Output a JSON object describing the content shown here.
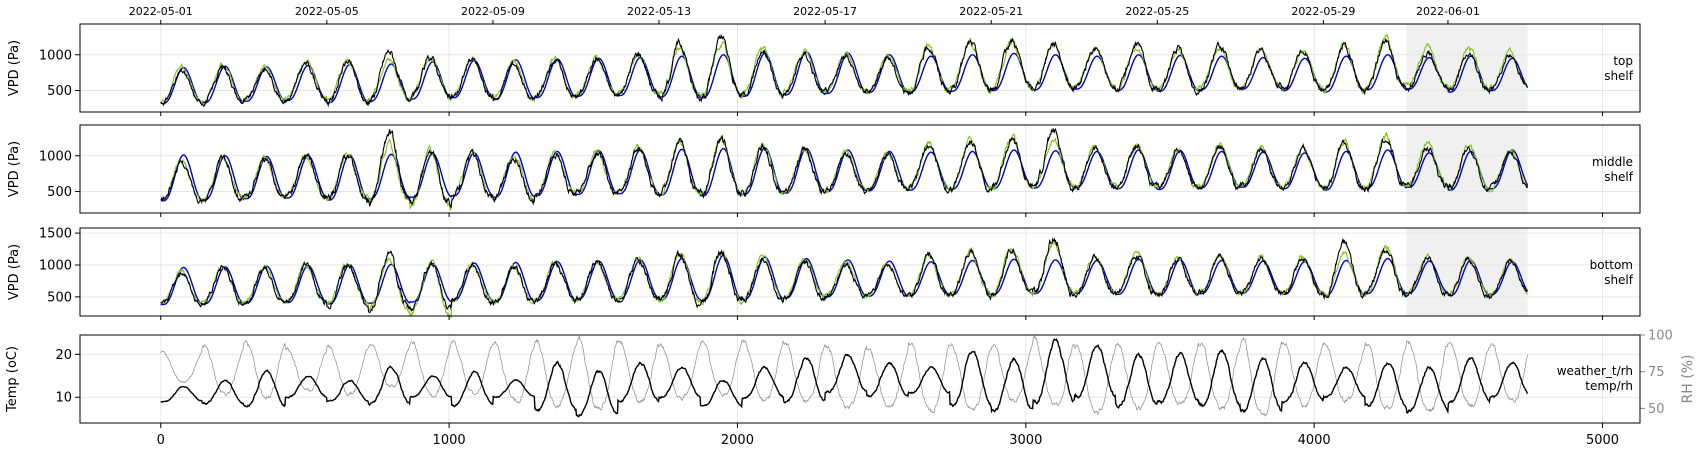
{
  "chart_data": {
    "type": "line",
    "x_range": [
      -280,
      5130
    ],
    "x_ticks": [
      0,
      1000,
      2000,
      3000,
      4000,
      5000
    ],
    "top_date_ticks": [
      {
        "x": 0,
        "label": "2022-05-01"
      },
      {
        "x": 576,
        "label": "2022-05-05"
      },
      {
        "x": 1152,
        "label": "2022-05-09"
      },
      {
        "x": 1728,
        "label": "2022-05-13"
      },
      {
        "x": 2304,
        "label": "2022-05-17"
      },
      {
        "x": 2880,
        "label": "2022-05-21"
      },
      {
        "x": 3456,
        "label": "2022-05-25"
      },
      {
        "x": 4032,
        "label": "2022-05-29"
      },
      {
        "x": 4464,
        "label": "2022-06-01"
      }
    ],
    "shaded_region": [
      4320,
      4740
    ],
    "data_x_max": 4740,
    "n_days": 33,
    "colors": {
      "blue": "#0000cc",
      "green": "#7fc31c",
      "black": "#000000",
      "gray": "#8a8a8a",
      "shade": "#f0f0f0",
      "grid": "#e6e6e6"
    },
    "panels": [
      {
        "ylabel": "VPD (Pa)",
        "label_line1": "top",
        "label_line2": "shelf",
        "ylim": [
          200,
          1430
        ],
        "yticks": [
          500,
          1000
        ],
        "series": [
          {
            "color": "blue",
            "peaks": [
              820,
              840,
              830,
              850,
              860,
              870,
              900,
              920,
              930,
              940,
              950,
              960,
              980,
              1000,
              1020,
              1040,
              1020,
              1000,
              980,
              1000,
              1020,
              1000,
              980,
              1000,
              990,
              980,
              960,
              950,
              980,
              1000,
              960,
              980,
              950
            ],
            "troughs": [
              320,
              330,
              350,
              360,
              330,
              350,
              380,
              400,
              380,
              400,
              420,
              430,
              410,
              400,
              420,
              440,
              460,
              470,
              480,
              490,
              500,
              510,
              520,
              500,
              490,
              510,
              520,
              500,
              480,
              510,
              520,
              480,
              500
            ]
          },
          {
            "color": "green",
            "peaks": [
              850,
              860,
              820,
              900,
              920,
              940,
              980,
              960,
              900,
              940,
              950,
              1000,
              1080,
              1150,
              1100,
              1050,
              1000,
              980,
              1120,
              1180,
              1200,
              1150,
              1080,
              1100,
              1050,
              1100,
              1070,
              1060,
              1150,
              1250,
              1150,
              1100,
              1050
            ],
            "troughs": [
              340,
              360,
              380,
              400,
              360,
              380,
              400,
              420,
              380,
              420,
              450,
              460,
              420,
              440,
              460,
              480,
              500,
              490,
              500,
              520,
              540,
              550,
              560,
              520,
              510,
              540,
              560,
              530,
              500,
              540,
              560,
              520,
              540
            ]
          },
          {
            "color": "black",
            "peaks": [
              760,
              830,
              800,
              880,
              900,
              1050,
              960,
              940,
              880,
              930,
              950,
              1020,
              1150,
              1220,
              1050,
              1000,
              980,
              960,
              1100,
              1160,
              1200,
              1180,
              1080,
              1150,
              1080,
              1120,
              1060,
              1050,
              1120,
              1200,
              1030,
              1000,
              980
            ],
            "troughs": [
              330,
              340,
              360,
              380,
              340,
              370,
              390,
              410,
              370,
              410,
              440,
              450,
              410,
              430,
              450,
              470,
              490,
              480,
              490,
              510,
              530,
              540,
              550,
              510,
              500,
              530,
              550,
              520,
              490,
              530,
              550,
              510,
              530
            ]
          }
        ]
      },
      {
        "ylabel": "VPD (Pa)",
        "label_line1": "middle",
        "label_line2": "shelf",
        "ylim": [
          200,
          1430
        ],
        "yticks": [
          500,
          1000
        ],
        "series": [
          {
            "color": "blue",
            "peaks": [
              1010,
              1000,
              990,
              1000,
              1010,
              1020,
              1030,
              1040,
              1050,
              1060,
              1070,
              1080,
              1090,
              1100,
              1110,
              1100,
              1080,
              1060,
              1050,
              1060,
              1080,
              1070,
              1060,
              1080,
              1070,
              1060,
              1050,
              1040,
              1060,
              1080,
              1040,
              1060,
              1080
            ],
            "troughs": [
              370,
              380,
              400,
              410,
              380,
              400,
              420,
              440,
              420,
              440,
              460,
              470,
              450,
              440,
              460,
              480,
              500,
              510,
              520,
              530,
              540,
              550,
              560,
              540,
              530,
              550,
              560,
              540,
              520,
              550,
              560,
              520,
              540
            ]
          },
          {
            "color": "green",
            "peaks": [
              940,
              980,
              960,
              1000,
              1020,
              1150,
              1060,
              1040,
              1000,
              1050,
              1060,
              1120,
              1200,
              1250,
              1150,
              1100,
              1050,
              1030,
              1160,
              1220,
              1260,
              1220,
              1120,
              1160,
              1100,
              1140,
              1120,
              1110,
              1200,
              1280,
              1200,
              1150,
              1100
            ],
            "troughs": [
              390,
              400,
              420,
              430,
              400,
              380,
              300,
              440,
              400,
              460,
              480,
              490,
              460,
              460,
              480,
              500,
              520,
              530,
              540,
              550,
              560,
              570,
              580,
              560,
              550,
              570,
              580,
              560,
              540,
              570,
              580,
              540,
              560
            ]
          },
          {
            "color": "black",
            "peaks": [
              900,
              960,
              950,
              990,
              1010,
              1300,
              1040,
              1020,
              980,
              1030,
              1050,
              1100,
              1180,
              1240,
              1120,
              1080,
              1030,
              1010,
              1140,
              1200,
              1250,
              1340,
              1100,
              1150,
              1090,
              1130,
              1100,
              1100,
              1180,
              1260,
              1120,
              1100,
              1050
            ],
            "troughs": [
              380,
              390,
              410,
              420,
              390,
              370,
              340,
              430,
              390,
              450,
              470,
              480,
              450,
              450,
              470,
              490,
              510,
              520,
              530,
              540,
              550,
              560,
              570,
              550,
              540,
              560,
              570,
              550,
              530,
              560,
              570,
              530,
              550
            ]
          }
        ]
      },
      {
        "ylabel": "VPD (Pa)",
        "label_line1": "bottom",
        "label_line2": "shelf",
        "ylim": [
          200,
          1580
        ],
        "yticks": [
          500,
          1000,
          1500
        ],
        "series": [
          {
            "color": "blue",
            "peaks": [
              960,
              970,
              980,
              990,
              1000,
              1010,
              1020,
              1030,
              1040,
              1050,
              1060,
              1080,
              1100,
              1150,
              1120,
              1100,
              1080,
              1060,
              1050,
              1070,
              1090,
              1080,
              1070,
              1090,
              1080,
              1070,
              1060,
              1050,
              1070,
              1100,
              1060,
              1070,
              1050
            ],
            "troughs": [
              380,
              390,
              400,
              410,
              390,
              400,
              420,
              440,
              420,
              440,
              460,
              470,
              450,
              440,
              460,
              480,
              500,
              510,
              520,
              530,
              540,
              550,
              560,
              540,
              530,
              550,
              560,
              540,
              520,
              550,
              560,
              520,
              540
            ]
          },
          {
            "color": "green",
            "peaks": [
              900,
              980,
              960,
              1000,
              1020,
              1080,
              1040,
              1020,
              980,
              1040,
              1050,
              1110,
              1180,
              1240,
              1120,
              1080,
              1040,
              1020,
              1150,
              1220,
              1260,
              1350,
              1150,
              1180,
              1120,
              1150,
              1130,
              1120,
              1200,
              1280,
              1150,
              1120,
              1080
            ],
            "troughs": [
              400,
              410,
              420,
              430,
              400,
              300,
              220,
              440,
              400,
              460,
              470,
              480,
              440,
              450,
              470,
              490,
              510,
              520,
              530,
              540,
              550,
              560,
              570,
              550,
              540,
              560,
              570,
              550,
              530,
              560,
              570,
              530,
              550
            ]
          },
          {
            "color": "black",
            "peaks": [
              880,
              960,
              950,
              990,
              1000,
              1150,
              1030,
              1010,
              970,
              1020,
              1040,
              1090,
              1160,
              1220,
              1100,
              1060,
              1020,
              1000,
              1130,
              1200,
              1240,
              1450,
              1120,
              1160,
              1100,
              1130,
              1110,
              1100,
              1320,
              1240,
              1100,
              1080,
              1050
            ],
            "troughs": [
              390,
              400,
              410,
              420,
              390,
              340,
              320,
              430,
              390,
              450,
              460,
              470,
              430,
              440,
              460,
              480,
              500,
              510,
              520,
              530,
              540,
              550,
              560,
              540,
              530,
              550,
              560,
              540,
              520,
              550,
              560,
              520,
              540
            ]
          }
        ]
      }
    ],
    "bottom_panel": {
      "ylabel": "Temp (oC)",
      "ylabel_right": "RH (%)",
      "label_line1": "weather_t/rh",
      "label_line2": "temp/rh",
      "ylim": [
        4,
        24.5
      ],
      "yticks": [
        10,
        20
      ],
      "rh_ylim": [
        40,
        100
      ],
      "rh_yticks": [
        50,
        75,
        100
      ],
      "temp": {
        "color": "black",
        "peaks": [
          12.5,
          14,
          16,
          15,
          14,
          17,
          15,
          16,
          14,
          18,
          16,
          18,
          17,
          14,
          17,
          19,
          20,
          18,
          17,
          21,
          19,
          23,
          22,
          20,
          20,
          21,
          19,
          18,
          17,
          18,
          17,
          19,
          18
        ],
        "troughs": [
          9,
          8.5,
          8,
          10,
          9,
          8.5,
          10,
          8,
          10,
          7,
          6,
          9,
          10,
          8,
          10,
          9,
          11,
          10,
          11,
          8,
          7,
          9,
          10,
          8,
          9,
          8,
          7,
          9,
          10,
          8,
          7,
          9,
          10
        ]
      },
      "rh": {
        "color": "gray",
        "peaks": [
          88,
          92,
          95,
          90,
          93,
          94,
          96,
          95,
          94,
          96,
          97,
          95,
          93,
          95,
          96,
          94,
          92,
          90,
          95,
          93,
          94,
          96,
          93,
          94,
          95,
          94,
          96,
          95,
          93,
          94,
          96,
          95,
          94
        ],
        "troughs": [
          68,
          60,
          58,
          62,
          60,
          65,
          58,
          60,
          55,
          52,
          50,
          55,
          58,
          60,
          55,
          53,
          50,
          52,
          48,
          50,
          55,
          52,
          48,
          50,
          53,
          50,
          45,
          52,
          55,
          50,
          48,
          52,
          55
        ]
      }
    }
  }
}
